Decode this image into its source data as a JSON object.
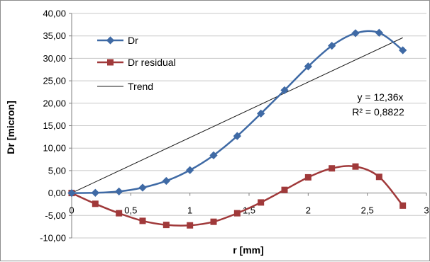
{
  "chart_data": {
    "type": "line",
    "xlabel": "r [mm]",
    "ylabel": "Dr [micron]",
    "xlim": [
      0,
      3
    ],
    "ylim": [
      -10,
      40
    ],
    "x_ticks": [
      0,
      0.5,
      1,
      1.5,
      2,
      2.5,
      3
    ],
    "x_tick_labels": [
      "0",
      "0,5",
      "1",
      "1,5",
      "2",
      "2,5",
      "3"
    ],
    "y_ticks": [
      -10,
      -5,
      0,
      5,
      10,
      15,
      20,
      25,
      30,
      35,
      40
    ],
    "y_tick_labels": [
      "-10,00",
      "-5,00",
      "0,00",
      "5,00",
      "10,00",
      "15,00",
      "20,00",
      "25,00",
      "30,00",
      "35,00",
      "40,00"
    ],
    "grid": "horizontal",
    "legend_position": "top-left",
    "series": [
      {
        "name": "Dr",
        "marker": "diamond",
        "color": "#3f6aa5",
        "x": [
          0,
          0.2,
          0.4,
          0.6,
          0.8,
          1.0,
          1.2,
          1.4,
          1.6,
          1.8,
          2.0,
          2.2,
          2.4,
          2.6,
          2.8
        ],
        "y": [
          0.0,
          0.05,
          0.35,
          1.2,
          2.7,
          5.1,
          8.4,
          12.7,
          17.7,
          22.9,
          28.2,
          32.8,
          35.6,
          35.7,
          31.8
        ]
      },
      {
        "name": "Dr residual",
        "marker": "square",
        "color": "#a0393a",
        "x": [
          0,
          0.2,
          0.4,
          0.6,
          0.8,
          1.0,
          1.2,
          1.4,
          1.6,
          1.8,
          2.0,
          2.2,
          2.4,
          2.6,
          2.8
        ],
        "y": [
          0.0,
          -2.4,
          -4.5,
          -6.2,
          -7.1,
          -7.2,
          -6.4,
          -4.5,
          -2.1,
          0.7,
          3.5,
          5.5,
          5.9,
          3.6,
          -2.8
        ]
      },
      {
        "name": "Trend",
        "color": "#1a1a1a",
        "x": [
          0,
          2.8
        ],
        "y": [
          0,
          34.6
        ]
      }
    ],
    "annotations": {
      "equation": "y = 12,36x",
      "r_squared": "R² = 0,8822"
    }
  }
}
